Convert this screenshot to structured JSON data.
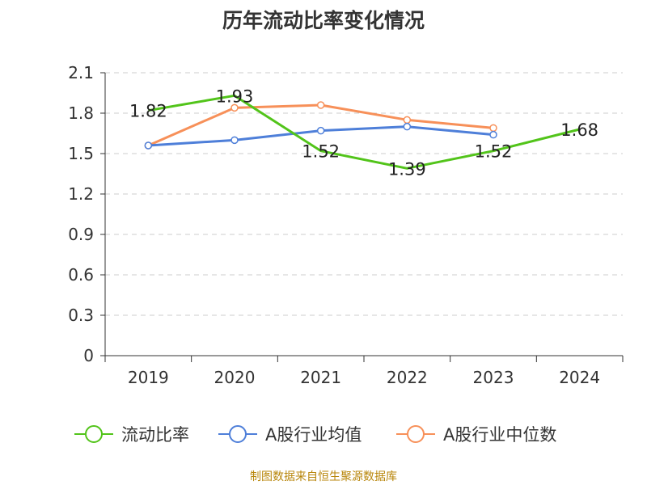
{
  "chart_data": {
    "type": "line",
    "title": "历年流动比率变化情况",
    "categories": [
      "2019",
      "2020",
      "2021",
      "2022",
      "2023",
      "2024"
    ],
    "ylim": [
      0,
      2.1
    ],
    "yticks": [
      "0",
      "0.3",
      "0.6",
      "0.9",
      "1.2",
      "1.5",
      "1.8",
      "2.1"
    ],
    "grid": true,
    "legend_position": "bottom",
    "series": [
      {
        "name": "流动比率",
        "color": "#52c41a",
        "values": [
          1.82,
          1.93,
          1.52,
          1.39,
          1.52,
          1.68
        ],
        "labels": [
          "1.82",
          "1.93",
          "1.52",
          "1.39",
          "1.52",
          "1.68"
        ]
      },
      {
        "name": "A股行业均值",
        "color": "#4e7fd9",
        "values": [
          1.56,
          1.6,
          1.67,
          1.7,
          1.64,
          null
        ]
      },
      {
        "name": "A股行业中位数",
        "color": "#f79059",
        "values": [
          1.56,
          1.84,
          1.86,
          1.75,
          1.69,
          null
        ]
      }
    ]
  },
  "footer": {
    "source": "制图数据来自恒生聚源数据库"
  }
}
